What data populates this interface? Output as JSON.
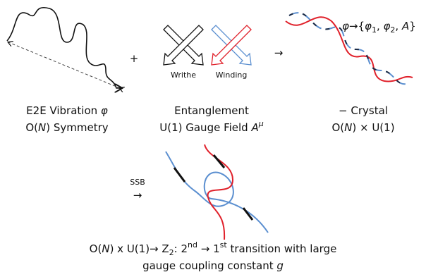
{
  "plus": "+",
  "arrow_main": "→",
  "writhe": "Writhe",
  "winding": "Winding",
  "crystal_map": [
    "φ",
    "→{",
    "φ",
    "1",
    ", ",
    "φ",
    "2",
    ", ",
    "A",
    "}"
  ],
  "vibration": {
    "line1": [
      "E2E Vibration ",
      "φ"
    ],
    "line2": [
      "O(",
      "N",
      ") Symmetry"
    ]
  },
  "entanglement": {
    "line1": [
      "Entanglement"
    ],
    "line2": [
      "U(1) Gauge Field ",
      "A",
      "μ"
    ]
  },
  "crystal": {
    "line1": [
      "− Crystal"
    ],
    "line2": [
      "O(",
      "N",
      ") × U(1)"
    ]
  },
  "ssb": {
    "label": "SSB",
    "arrow": "→"
  },
  "conclusion": {
    "line1": [
      "O(",
      "N",
      ") x U(1)→ Z",
      "2",
      ": 2",
      "nd",
      " → 1",
      "st",
      " transition with large"
    ],
    "line2": [
      "gauge coupling constant ",
      "g"
    ]
  }
}
